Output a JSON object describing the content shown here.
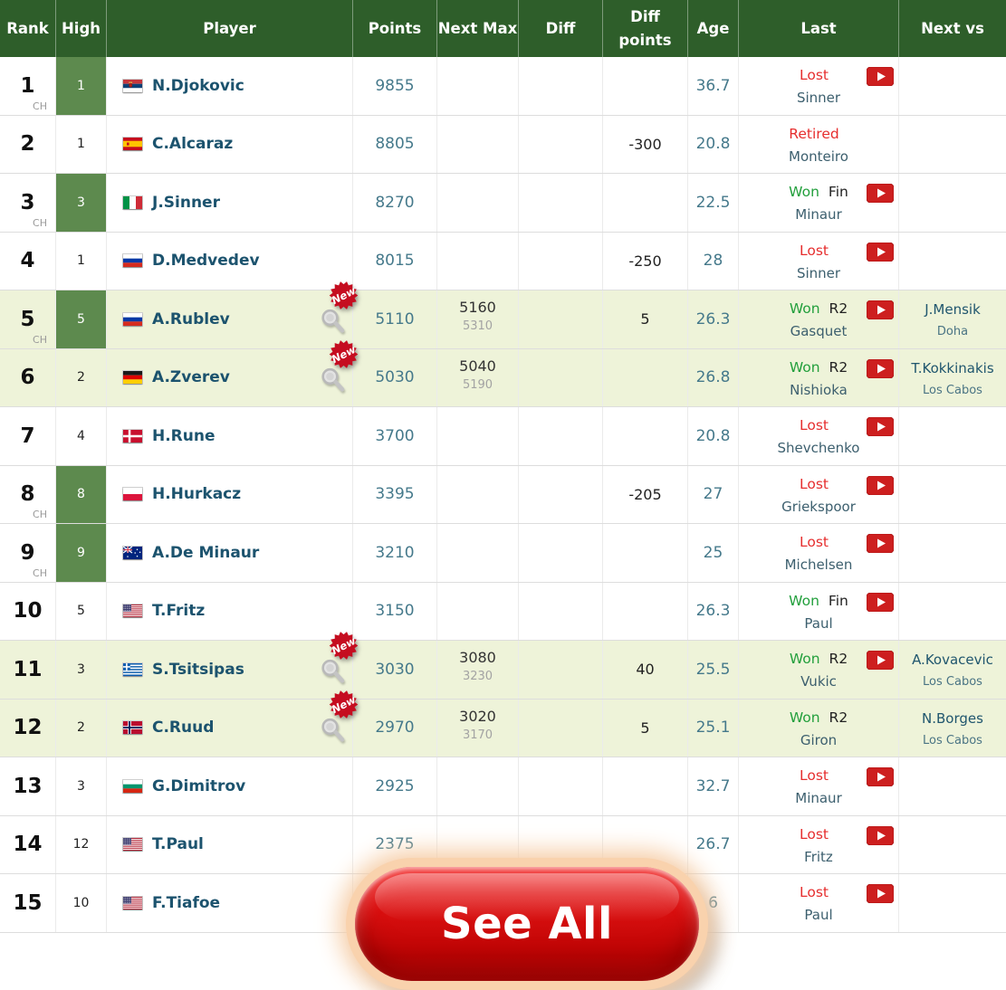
{
  "page": {
    "see_all_label": "See All"
  },
  "badges": {
    "new_label": "New",
    "career_high_label": "CH"
  },
  "colors": {
    "header_bg": "#2e5e2a",
    "career_high_green": "#5d8a4e",
    "highlight_row": "#eef3d9",
    "won_green": "#229f3c",
    "lost_red": "#e62e2e",
    "youtube_red": "#cd1f1f",
    "see_all_red": "#c40000",
    "see_all_glow": "#f9d2ad"
  },
  "table": {
    "columns": [
      "Rank",
      "High",
      "Player",
      "Points",
      "Next Max",
      "Diff",
      "Diff points",
      "Age",
      "Last",
      "Next vs"
    ],
    "rows": [
      {
        "rank": "1",
        "ch_label": "CH",
        "high": "1",
        "high_green": true,
        "flag": "serbia",
        "player": "N.Djokovic",
        "new_badge": false,
        "points": "9855",
        "next_max": "",
        "next_max_sub": "",
        "diff": "",
        "diff_points": "",
        "age": "36.7",
        "last_result": "Lost",
        "last_round": "",
        "last_opponent": "Sinner",
        "youtube": true,
        "next_vs": "",
        "next_vs_location": "",
        "highlight": false
      },
      {
        "rank": "2",
        "ch_label": "",
        "high": "1",
        "high_green": false,
        "flag": "spain",
        "player": "C.Alcaraz",
        "new_badge": false,
        "points": "8805",
        "next_max": "",
        "next_max_sub": "",
        "diff": "",
        "diff_points": "-300",
        "age": "20.8",
        "last_result": "Retired",
        "last_round": "",
        "last_opponent": "Monteiro",
        "youtube": false,
        "next_vs": "",
        "next_vs_location": "",
        "highlight": false
      },
      {
        "rank": "3",
        "ch_label": "CH",
        "high": "3",
        "high_green": true,
        "flag": "italy",
        "player": "J.Sinner",
        "new_badge": false,
        "points": "8270",
        "next_max": "",
        "next_max_sub": "",
        "diff": "",
        "diff_points": "",
        "age": "22.5",
        "last_result": "Won",
        "last_round": "Fin",
        "last_opponent": "Minaur",
        "youtube": true,
        "next_vs": "",
        "next_vs_location": "",
        "highlight": false
      },
      {
        "rank": "4",
        "ch_label": "",
        "high": "1",
        "high_green": false,
        "flag": "russia",
        "player": "D.Medvedev",
        "new_badge": false,
        "points": "8015",
        "next_max": "",
        "next_max_sub": "",
        "diff": "",
        "diff_points": "-250",
        "age": "28",
        "last_result": "Lost",
        "last_round": "",
        "last_opponent": "Sinner",
        "youtube": true,
        "next_vs": "",
        "next_vs_location": "",
        "highlight": false
      },
      {
        "rank": "5",
        "ch_label": "CH",
        "high": "5",
        "high_green": true,
        "flag": "russia",
        "player": "A.Rublev",
        "new_badge": true,
        "points": "5110",
        "next_max": "5160",
        "next_max_sub": "5310",
        "diff": "",
        "diff_points": "5",
        "age": "26.3",
        "last_result": "Won",
        "last_round": "R2",
        "last_opponent": "Gasquet",
        "youtube": true,
        "next_vs": "J.Mensik",
        "next_vs_location": "Doha",
        "highlight": true
      },
      {
        "rank": "6",
        "ch_label": "",
        "high": "2",
        "high_green": false,
        "flag": "germany",
        "player": "A.Zverev",
        "new_badge": true,
        "points": "5030",
        "next_max": "5040",
        "next_max_sub": "5190",
        "diff": "",
        "diff_points": "",
        "age": "26.8",
        "last_result": "Won",
        "last_round": "R2",
        "last_opponent": "Nishioka",
        "youtube": true,
        "next_vs": "T.Kokkinakis",
        "next_vs_location": "Los Cabos",
        "highlight": true
      },
      {
        "rank": "7",
        "ch_label": "",
        "high": "4",
        "high_green": false,
        "flag": "denmark",
        "player": "H.Rune",
        "new_badge": false,
        "points": "3700",
        "next_max": "",
        "next_max_sub": "",
        "diff": "",
        "diff_points": "",
        "age": "20.8",
        "last_result": "Lost",
        "last_round": "",
        "last_opponent": "Shevchenko",
        "youtube": true,
        "next_vs": "",
        "next_vs_location": "",
        "highlight": false
      },
      {
        "rank": "8",
        "ch_label": "CH",
        "high": "8",
        "high_green": true,
        "flag": "poland",
        "player": "H.Hurkacz",
        "new_badge": false,
        "points": "3395",
        "next_max": "",
        "next_max_sub": "",
        "diff": "",
        "diff_points": "-205",
        "age": "27",
        "last_result": "Lost",
        "last_round": "",
        "last_opponent": "Griekspoor",
        "youtube": true,
        "next_vs": "",
        "next_vs_location": "",
        "highlight": false
      },
      {
        "rank": "9",
        "ch_label": "CH",
        "high": "9",
        "high_green": true,
        "flag": "australia",
        "player": "A.De Minaur",
        "new_badge": false,
        "points": "3210",
        "next_max": "",
        "next_max_sub": "",
        "diff": "",
        "diff_points": "",
        "age": "25",
        "last_result": "Lost",
        "last_round": "",
        "last_opponent": "Michelsen",
        "youtube": true,
        "next_vs": "",
        "next_vs_location": "",
        "highlight": false
      },
      {
        "rank": "10",
        "ch_label": "",
        "high": "5",
        "high_green": false,
        "flag": "usa",
        "player": "T.Fritz",
        "new_badge": false,
        "points": "3150",
        "next_max": "",
        "next_max_sub": "",
        "diff": "",
        "diff_points": "",
        "age": "26.3",
        "last_result": "Won",
        "last_round": "Fin",
        "last_opponent": "Paul",
        "youtube": true,
        "next_vs": "",
        "next_vs_location": "",
        "highlight": false
      },
      {
        "rank": "11",
        "ch_label": "",
        "high": "3",
        "high_green": false,
        "flag": "greece",
        "player": "S.Tsitsipas",
        "new_badge": true,
        "points": "3030",
        "next_max": "3080",
        "next_max_sub": "3230",
        "diff": "",
        "diff_points": "40",
        "age": "25.5",
        "last_result": "Won",
        "last_round": "R2",
        "last_opponent": "Vukic",
        "youtube": true,
        "next_vs": "A.Kovacevic",
        "next_vs_location": "Los Cabos",
        "highlight": true
      },
      {
        "rank": "12",
        "ch_label": "",
        "high": "2",
        "high_green": false,
        "flag": "norway",
        "player": "C.Ruud",
        "new_badge": true,
        "points": "2970",
        "next_max": "3020",
        "next_max_sub": "3170",
        "diff": "",
        "diff_points": "5",
        "age": "25.1",
        "last_result": "Won",
        "last_round": "R2",
        "last_opponent": "Giron",
        "youtube": false,
        "next_vs": "N.Borges",
        "next_vs_location": "Los Cabos",
        "highlight": true
      },
      {
        "rank": "13",
        "ch_label": "",
        "high": "3",
        "high_green": false,
        "flag": "bulgaria",
        "player": "G.Dimitrov",
        "new_badge": false,
        "points": "2925",
        "next_max": "",
        "next_max_sub": "",
        "diff": "",
        "diff_points": "",
        "age": "32.7",
        "last_result": "Lost",
        "last_round": "",
        "last_opponent": "Minaur",
        "youtube": true,
        "next_vs": "",
        "next_vs_location": "",
        "highlight": false
      },
      {
        "rank": "14",
        "ch_label": "",
        "high": "12",
        "high_green": false,
        "flag": "usa",
        "player": "T.Paul",
        "new_badge": false,
        "points": "2375",
        "next_max": "",
        "next_max_sub": "",
        "diff": "",
        "diff_points": "",
        "age": "26.7",
        "last_result": "Lost",
        "last_round": "",
        "last_opponent": "Fritz",
        "youtube": true,
        "next_vs": "",
        "next_vs_location": "",
        "highlight": false
      },
      {
        "rank": "15",
        "ch_label": "",
        "high": "10",
        "high_green": false,
        "flag": "usa",
        "player": "F.Tiafoe",
        "new_badge": false,
        "points": "",
        "next_max": "",
        "next_max_sub": "",
        "diff": "",
        "diff_points": "",
        "age": "6",
        "last_result": "Lost",
        "last_round": "",
        "last_opponent": "Paul",
        "youtube": true,
        "next_vs": "",
        "next_vs_location": "",
        "highlight": false
      }
    ]
  }
}
